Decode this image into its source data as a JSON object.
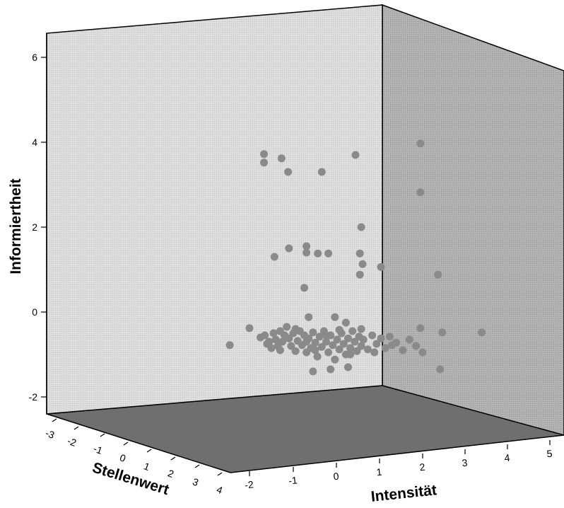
{
  "chart_data": {
    "type": "scatter",
    "dimensions": "3d",
    "x_axis": {
      "label": "Intensität",
      "ticks": [
        "-2",
        "-1",
        "0",
        "1",
        "2",
        "3",
        "4",
        "5"
      ]
    },
    "y_axis": {
      "label": "Informiertheit",
      "ticks": [
        "-2",
        "0",
        "2",
        "4",
        "6"
      ]
    },
    "z_axis": {
      "label": "Stellenwert",
      "ticks": [
        "-3",
        "-2",
        "-1",
        "0",
        "1",
        "2",
        "3",
        "4"
      ]
    },
    "point_color": "#8a8a8a",
    "back_wall_color": "#d4d4d4",
    "side_wall_color": "#a9a9a9",
    "floor_color": "#707070",
    "grid": false,
    "points": [
      {
        "x": -1.67,
        "y": 3.72
      },
      {
        "x": -1.67,
        "y": 3.52
      },
      {
        "x": -1.27,
        "y": 3.62
      },
      {
        "x": -1.12,
        "y": 3.3
      },
      {
        "x": -0.35,
        "y": 3.3
      },
      {
        "x": 0.42,
        "y": 3.7
      },
      {
        "x": 1.9,
        "y": 3.97
      },
      {
        "x": 1.9,
        "y": 2.82
      },
      {
        "x": 0.55,
        "y": 2.0
      },
      {
        "x": -1.1,
        "y": 1.5
      },
      {
        "x": -1.43,
        "y": 1.3
      },
      {
        "x": -0.7,
        "y": 1.55
      },
      {
        "x": -0.7,
        "y": 1.4
      },
      {
        "x": -0.44,
        "y": 1.38
      },
      {
        "x": -0.2,
        "y": 1.38
      },
      {
        "x": 0.52,
        "y": 1.38
      },
      {
        "x": 0.58,
        "y": 1.13
      },
      {
        "x": 0.52,
        "y": 0.88
      },
      {
        "x": 1.0,
        "y": 1.06
      },
      {
        "x": 2.3,
        "y": 0.88
      },
      {
        "x": -0.75,
        "y": 0.57
      },
      {
        "x": -0.65,
        "y": -0.12
      },
      {
        "x": -0.05,
        "y": -0.12
      },
      {
        "x": 0.2,
        "y": -0.25
      },
      {
        "x": 1.9,
        "y": -0.38
      },
      {
        "x": 2.4,
        "y": -0.48
      },
      {
        "x": 3.3,
        "y": -0.48
      },
      {
        "x": -2.45,
        "y": -0.78
      },
      {
        "x": -2.0,
        "y": -0.38
      },
      {
        "x": -1.75,
        "y": -0.6
      },
      {
        "x": -1.65,
        "y": -0.55
      },
      {
        "x": -1.55,
        "y": -0.7
      },
      {
        "x": -1.5,
        "y": -0.85
      },
      {
        "x": -1.45,
        "y": -0.5
      },
      {
        "x": -1.4,
        "y": -0.65
      },
      {
        "x": -1.35,
        "y": -0.8
      },
      {
        "x": -1.3,
        "y": -0.45
      },
      {
        "x": -1.25,
        "y": -0.7
      },
      {
        "x": -1.2,
        "y": -0.55
      },
      {
        "x": -1.15,
        "y": -0.35
      },
      {
        "x": -1.1,
        "y": -0.62
      },
      {
        "x": -1.05,
        "y": -0.8
      },
      {
        "x": -1.0,
        "y": -0.5
      },
      {
        "x": -0.95,
        "y": -0.92
      },
      {
        "x": -0.9,
        "y": -0.68
      },
      {
        "x": -0.85,
        "y": -0.45
      },
      {
        "x": -0.8,
        "y": -0.78
      },
      {
        "x": -0.75,
        "y": -0.55
      },
      {
        "x": -0.7,
        "y": -0.95
      },
      {
        "x": -0.65,
        "y": -0.62
      },
      {
        "x": -0.6,
        "y": -0.85
      },
      {
        "x": -0.55,
        "y": -0.48
      },
      {
        "x": -0.5,
        "y": -0.72
      },
      {
        "x": -0.45,
        "y": -1.05
      },
      {
        "x": -0.4,
        "y": -0.58
      },
      {
        "x": -0.35,
        "y": -0.82
      },
      {
        "x": -0.3,
        "y": -0.45
      },
      {
        "x": -0.25,
        "y": -0.7
      },
      {
        "x": -0.2,
        "y": -0.95
      },
      {
        "x": -0.15,
        "y": -0.55
      },
      {
        "x": -0.1,
        "y": -0.78
      },
      {
        "x": -0.05,
        "y": -1.12
      },
      {
        "x": 0.0,
        "y": -0.65
      },
      {
        "x": 0.05,
        "y": -0.88
      },
      {
        "x": 0.1,
        "y": -0.5
      },
      {
        "x": 0.15,
        "y": -0.75
      },
      {
        "x": 0.2,
        "y": -1.0
      },
      {
        "x": 0.25,
        "y": -0.62
      },
      {
        "x": 0.3,
        "y": -0.85
      },
      {
        "x": 0.35,
        "y": -0.45
      },
      {
        "x": 0.4,
        "y": -0.7
      },
      {
        "x": 0.45,
        "y": -0.92
      },
      {
        "x": 0.5,
        "y": -0.58
      },
      {
        "x": 0.55,
        "y": -0.8
      },
      {
        "x": 0.6,
        "y": -0.65
      },
      {
        "x": 0.7,
        "y": -0.88
      },
      {
        "x": 0.8,
        "y": -0.55
      },
      {
        "x": 0.9,
        "y": -0.75
      },
      {
        "x": 1.0,
        "y": -0.62
      },
      {
        "x": 1.1,
        "y": -0.85
      },
      {
        "x": 1.2,
        "y": -0.58
      },
      {
        "x": 1.35,
        "y": -0.72
      },
      {
        "x": 1.5,
        "y": -0.9
      },
      {
        "x": 1.65,
        "y": -0.65
      },
      {
        "x": 1.8,
        "y": -0.8
      },
      {
        "x": 1.95,
        "y": -0.95
      },
      {
        "x": -1.6,
        "y": -0.75
      },
      {
        "x": -1.3,
        "y": -0.9
      },
      {
        "x": -0.95,
        "y": -0.4
      },
      {
        "x": -0.7,
        "y": -0.7
      },
      {
        "x": -0.5,
        "y": -0.9
      },
      {
        "x": -0.25,
        "y": -0.55
      },
      {
        "x": 0.05,
        "y": -0.42
      },
      {
        "x": 0.3,
        "y": -1.0
      },
      {
        "x": 0.55,
        "y": -0.4
      },
      {
        "x": 0.85,
        "y": -0.95
      },
      {
        "x": 1.25,
        "y": -0.78
      },
      {
        "x": -0.55,
        "y": -1.4
      },
      {
        "x": -0.15,
        "y": -1.35
      },
      {
        "x": 0.25,
        "y": -1.3
      },
      {
        "x": 2.35,
        "y": -1.35
      }
    ]
  }
}
